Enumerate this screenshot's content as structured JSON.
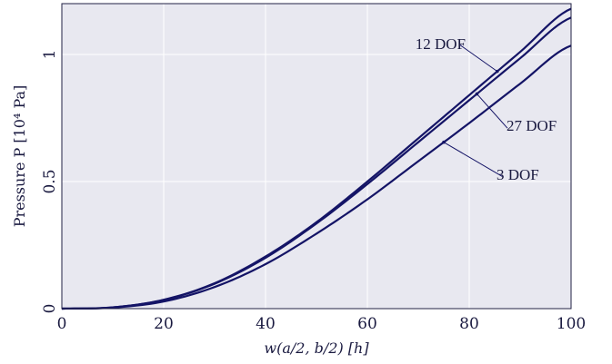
{
  "chart_data": {
    "type": "line",
    "xlabel": "w(a/2, b/2) [h]",
    "ylabel": "Pressure P [10⁴ Pa]",
    "xlim": [
      0,
      100
    ],
    "ylim": [
      0,
      1.2
    ],
    "x_ticks": [
      0,
      20,
      40,
      60,
      80,
      100
    ],
    "x_tick_labels": [
      "0",
      "20",
      "40",
      "60",
      "80",
      "100"
    ],
    "y_ticks": [
      0,
      0.5,
      1
    ],
    "y_tick_labels": [
      "0",
      "0.5",
      "1"
    ],
    "grid": true,
    "colors": {
      "background": "#e8e8f0",
      "line": "#141466",
      "grid": "#ffffff"
    },
    "series": [
      {
        "name": "12 DOF",
        "x": [
          0,
          10,
          20,
          30,
          40,
          50,
          60,
          70,
          80,
          90,
          100
        ],
        "y": [
          0,
          0.005,
          0.035,
          0.1,
          0.205,
          0.34,
          0.5,
          0.67,
          0.84,
          1.01,
          1.18
        ]
      },
      {
        "name": "27 DOF",
        "x": [
          0,
          10,
          20,
          30,
          40,
          50,
          60,
          70,
          80,
          90,
          100
        ],
        "y": [
          0,
          0.005,
          0.034,
          0.098,
          0.2,
          0.335,
          0.49,
          0.655,
          0.82,
          0.985,
          1.145
        ]
      },
      {
        "name": "3 DOF",
        "x": [
          0,
          10,
          20,
          30,
          40,
          50,
          60,
          70,
          80,
          90,
          100
        ],
        "y": [
          0,
          0.004,
          0.028,
          0.085,
          0.175,
          0.295,
          0.43,
          0.58,
          0.73,
          0.885,
          1.035
        ]
      }
    ],
    "annotations": [
      {
        "text": "12 DOF",
        "series": 0,
        "point_x": 85.5,
        "label_x": 78,
        "label_y": 1.04
      },
      {
        "text": "27 DOF",
        "series": 1,
        "point_x": 81.5,
        "label_x": 87.5,
        "label_y": 0.71
      },
      {
        "text": "3 DOF",
        "series": 2,
        "point_x": 75,
        "label_x": 86.5,
        "label_y": 0.52
      }
    ]
  }
}
